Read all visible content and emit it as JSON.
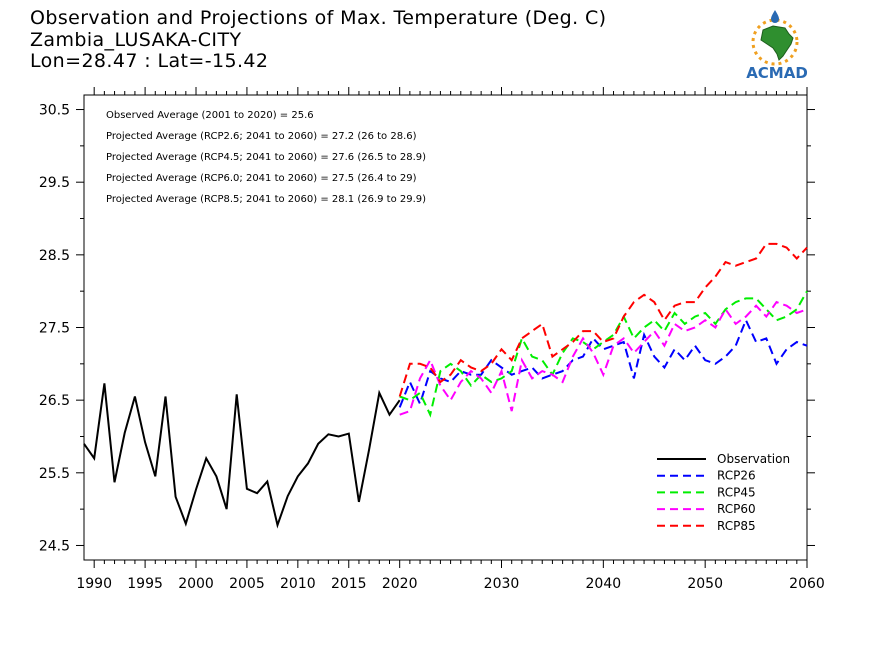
{
  "header": {
    "title_line1": "Observation and Projections of Max. Temperature (Deg. C)",
    "title_line2": "Zambia_LUSAKA-CITY",
    "title_line3": "Lon=28.47 : Lat=-15.42"
  },
  "logo": {
    "text": "ACMAD",
    "icon": "africa-map-sun-logo"
  },
  "colors": {
    "observation": "#000000",
    "rcp26": "#0000ff",
    "rcp45": "#00ee00",
    "rcp60": "#ff00ff",
    "rcp85": "#ff0000"
  },
  "chart_data": {
    "type": "line",
    "xlim": [
      1989,
      2060
    ],
    "ylim": [
      24.3,
      30.7
    ],
    "x_ticks": [
      1990,
      1995,
      2000,
      2005,
      2010,
      2015,
      2020,
      2030,
      2040,
      2050,
      2060
    ],
    "y_ticks": [
      24.5,
      25.5,
      26.5,
      27.5,
      28.5,
      29.5,
      30.5
    ],
    "y_tick_labels": [
      "24.5",
      "25.5",
      "26.5",
      "27.5",
      "28.5",
      "29.5",
      "30.5"
    ],
    "annotations": [
      "Observed Average (2001 to 2020) = 25.6",
      "Projected Average (RCP2.6; 2041 to 2060) = 27.2 (26 to 28.6)",
      "Projected Average (RCP4.5; 2041 to 2060) = 27.6 (26.5 to 28.9)",
      "Projected Average (RCP6.0; 2041 to 2060) = 27.5 (26.4 to 29)",
      "Projected Average (RCP8.5; 2041 to 2060) = 28.1 (26.9 to 29.9)"
    ],
    "legend": [
      "Observation",
      "RCP26",
      "RCP45",
      "RCP60",
      "RCP85"
    ],
    "series": [
      {
        "name": "Observation",
        "style": "solid",
        "color": "#000000",
        "x": [
          1989,
          1990,
          1991,
          1992,
          1993,
          1994,
          1995,
          1996,
          1997,
          1998,
          1999,
          2000,
          2001,
          2002,
          2003,
          2004,
          2005,
          2006,
          2007,
          2008,
          2009,
          2010,
          2011,
          2012,
          2013,
          2014,
          2015,
          2016,
          2017,
          2018,
          2019,
          2020
        ],
        "y": [
          25.9,
          25.7,
          26.73,
          25.37,
          26.05,
          26.55,
          25.92,
          25.45,
          26.55,
          25.17,
          24.8,
          25.27,
          25.7,
          25.45,
          25.0,
          26.58,
          25.28,
          25.22,
          25.38,
          24.78,
          25.18,
          25.45,
          25.63,
          25.9,
          26.03,
          26.0,
          26.04,
          25.1,
          25.82,
          26.6,
          26.3,
          26.5
        ]
      },
      {
        "name": "RCP26",
        "style": "dashed",
        "color": "#0000ff",
        "x": [
          2020,
          2021,
          2022,
          2023,
          2024,
          2025,
          2026,
          2027,
          2028,
          2029,
          2030,
          2031,
          2032,
          2033,
          2034,
          2035,
          2036,
          2037,
          2038,
          2039,
          2040,
          2041,
          2042,
          2043,
          2044,
          2045,
          2046,
          2047,
          2048,
          2049,
          2050,
          2051,
          2052,
          2053,
          2054,
          2055,
          2056,
          2057,
          2058,
          2059,
          2060
        ],
        "y": [
          26.4,
          26.75,
          26.45,
          26.9,
          26.8,
          26.75,
          26.9,
          26.85,
          26.85,
          27.05,
          26.95,
          26.85,
          26.9,
          26.95,
          26.8,
          26.85,
          26.9,
          27.05,
          27.1,
          27.35,
          27.2,
          27.25,
          27.3,
          26.8,
          27.4,
          27.1,
          26.95,
          27.2,
          27.05,
          27.25,
          27.05,
          27.0,
          27.1,
          27.25,
          27.6,
          27.3,
          27.35,
          27.0,
          27.2,
          27.3,
          27.25
        ]
      },
      {
        "name": "RCP45",
        "style": "dashed",
        "color": "#00ee00",
        "x": [
          2020,
          2021,
          2022,
          2023,
          2024,
          2025,
          2026,
          2027,
          2028,
          2029,
          2030,
          2031,
          2032,
          2033,
          2034,
          2035,
          2036,
          2037,
          2038,
          2039,
          2040,
          2041,
          2042,
          2043,
          2044,
          2045,
          2046,
          2047,
          2048,
          2049,
          2050,
          2051,
          2052,
          2053,
          2054,
          2055,
          2056,
          2057,
          2058,
          2059,
          2060
        ],
        "y": [
          26.55,
          26.5,
          26.6,
          26.3,
          26.9,
          27.0,
          26.9,
          26.7,
          26.85,
          26.75,
          26.8,
          26.9,
          27.35,
          27.1,
          27.05,
          26.85,
          27.15,
          27.35,
          27.3,
          27.2,
          27.3,
          27.4,
          27.65,
          27.35,
          27.5,
          27.6,
          27.45,
          27.7,
          27.55,
          27.65,
          27.7,
          27.55,
          27.75,
          27.85,
          27.9,
          27.9,
          27.75,
          27.6,
          27.65,
          27.75,
          28.0
        ]
      },
      {
        "name": "RCP60",
        "style": "dashed",
        "color": "#ff00ff",
        "x": [
          2020,
          2021,
          2022,
          2023,
          2024,
          2025,
          2026,
          2027,
          2028,
          2029,
          2030,
          2031,
          2032,
          2033,
          2034,
          2035,
          2036,
          2037,
          2038,
          2039,
          2040,
          2041,
          2042,
          2043,
          2044,
          2045,
          2046,
          2047,
          2048,
          2049,
          2050,
          2051,
          2052,
          2053,
          2054,
          2055,
          2056,
          2057,
          2058,
          2059,
          2060
        ],
        "y": [
          26.3,
          26.35,
          26.8,
          27.05,
          26.7,
          26.5,
          26.75,
          26.9,
          26.8,
          26.6,
          26.9,
          26.35,
          27.05,
          26.8,
          26.9,
          26.85,
          26.75,
          27.1,
          27.35,
          27.15,
          26.85,
          27.25,
          27.35,
          27.15,
          27.3,
          27.45,
          27.25,
          27.55,
          27.45,
          27.5,
          27.6,
          27.5,
          27.75,
          27.55,
          27.65,
          27.8,
          27.65,
          27.85,
          27.8,
          27.7,
          27.75
        ]
      },
      {
        "name": "RCP85",
        "style": "dashed",
        "color": "#ff0000",
        "x": [
          2020,
          2021,
          2022,
          2023,
          2024,
          2025,
          2026,
          2027,
          2028,
          2029,
          2030,
          2031,
          2032,
          2033,
          2034,
          2035,
          2036,
          2037,
          2038,
          2039,
          2040,
          2041,
          2042,
          2043,
          2044,
          2045,
          2046,
          2047,
          2048,
          2049,
          2050,
          2051,
          2052,
          2053,
          2054,
          2055,
          2056,
          2057,
          2058,
          2059,
          2060
        ],
        "y": [
          26.55,
          27.0,
          27.0,
          26.95,
          26.75,
          26.85,
          27.05,
          26.95,
          26.9,
          27.0,
          27.2,
          27.05,
          27.35,
          27.45,
          27.55,
          27.1,
          27.2,
          27.3,
          27.45,
          27.45,
          27.3,
          27.35,
          27.65,
          27.85,
          27.95,
          27.85,
          27.6,
          27.8,
          27.85,
          27.85,
          28.05,
          28.2,
          28.4,
          28.35,
          28.4,
          28.45,
          28.65,
          28.65,
          28.6,
          28.45,
          28.6
        ]
      }
    ]
  }
}
